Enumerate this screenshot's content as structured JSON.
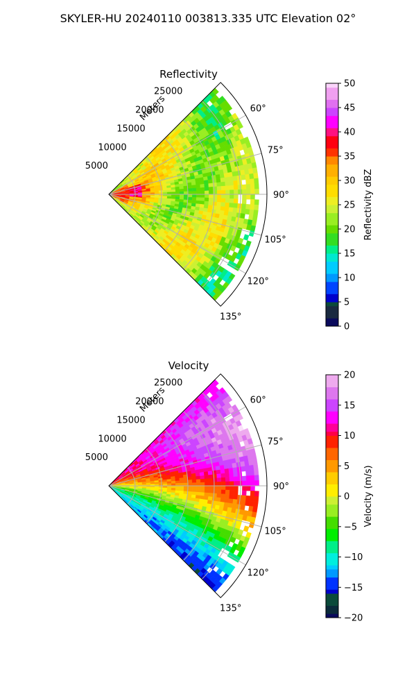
{
  "figure": {
    "title": "SKYLER-HU  20240110  003813.335 UTC Elevation 02°"
  },
  "chart_data": [
    {
      "type": "heatmap",
      "projection": "polar-sector",
      "title": "Reflectivity",
      "radial_label": "Meters",
      "radial_ticks": [
        5000,
        10000,
        15000,
        20000,
        25000
      ],
      "radial_tick_labels": [
        "5000",
        "10000",
        "15000",
        "20000",
        "25000"
      ],
      "rlim": [
        0,
        30000
      ],
      "angle_ticks": [
        60,
        75,
        90,
        105,
        120,
        135
      ],
      "angle_tick_labels": [
        "60°",
        "75°",
        "90°",
        "105°",
        "120°",
        "135°"
      ],
      "angle_range": [
        45,
        135
      ],
      "grid": true,
      "colorbar": {
        "label": "Reflectivity dBZ",
        "range": [
          0,
          50
        ],
        "ticks": [
          0,
          5,
          10,
          15,
          20,
          25,
          30,
          35,
          40,
          45,
          50
        ],
        "tick_labels": [
          "0",
          "5",
          "10",
          "15",
          "20",
          "25",
          "30",
          "35",
          "40",
          "45",
          "50"
        ]
      }
    },
    {
      "type": "heatmap",
      "projection": "polar-sector",
      "title": "Velocity",
      "radial_label": "Meters",
      "radial_ticks": [
        5000,
        10000,
        15000,
        20000,
        25000
      ],
      "radial_tick_labels": [
        "5000",
        "10000",
        "15000",
        "20000",
        "25000"
      ],
      "rlim": [
        0,
        30000
      ],
      "angle_ticks": [
        60,
        75,
        90,
        105,
        120,
        135
      ],
      "angle_tick_labels": [
        "60°",
        "75°",
        "90°",
        "105°",
        "120°",
        "135°"
      ],
      "angle_range": [
        45,
        135
      ],
      "grid": true,
      "colorbar": {
        "label": "Velocity (m/s)",
        "range": [
          -20,
          20
        ],
        "ticks": [
          -20,
          -15,
          -10,
          -5,
          0,
          5,
          10,
          15,
          20
        ],
        "tick_labels": [
          "−20",
          "−15",
          "−10",
          "−5",
          "0",
          "5",
          "10",
          "15",
          "20"
        ]
      }
    }
  ]
}
